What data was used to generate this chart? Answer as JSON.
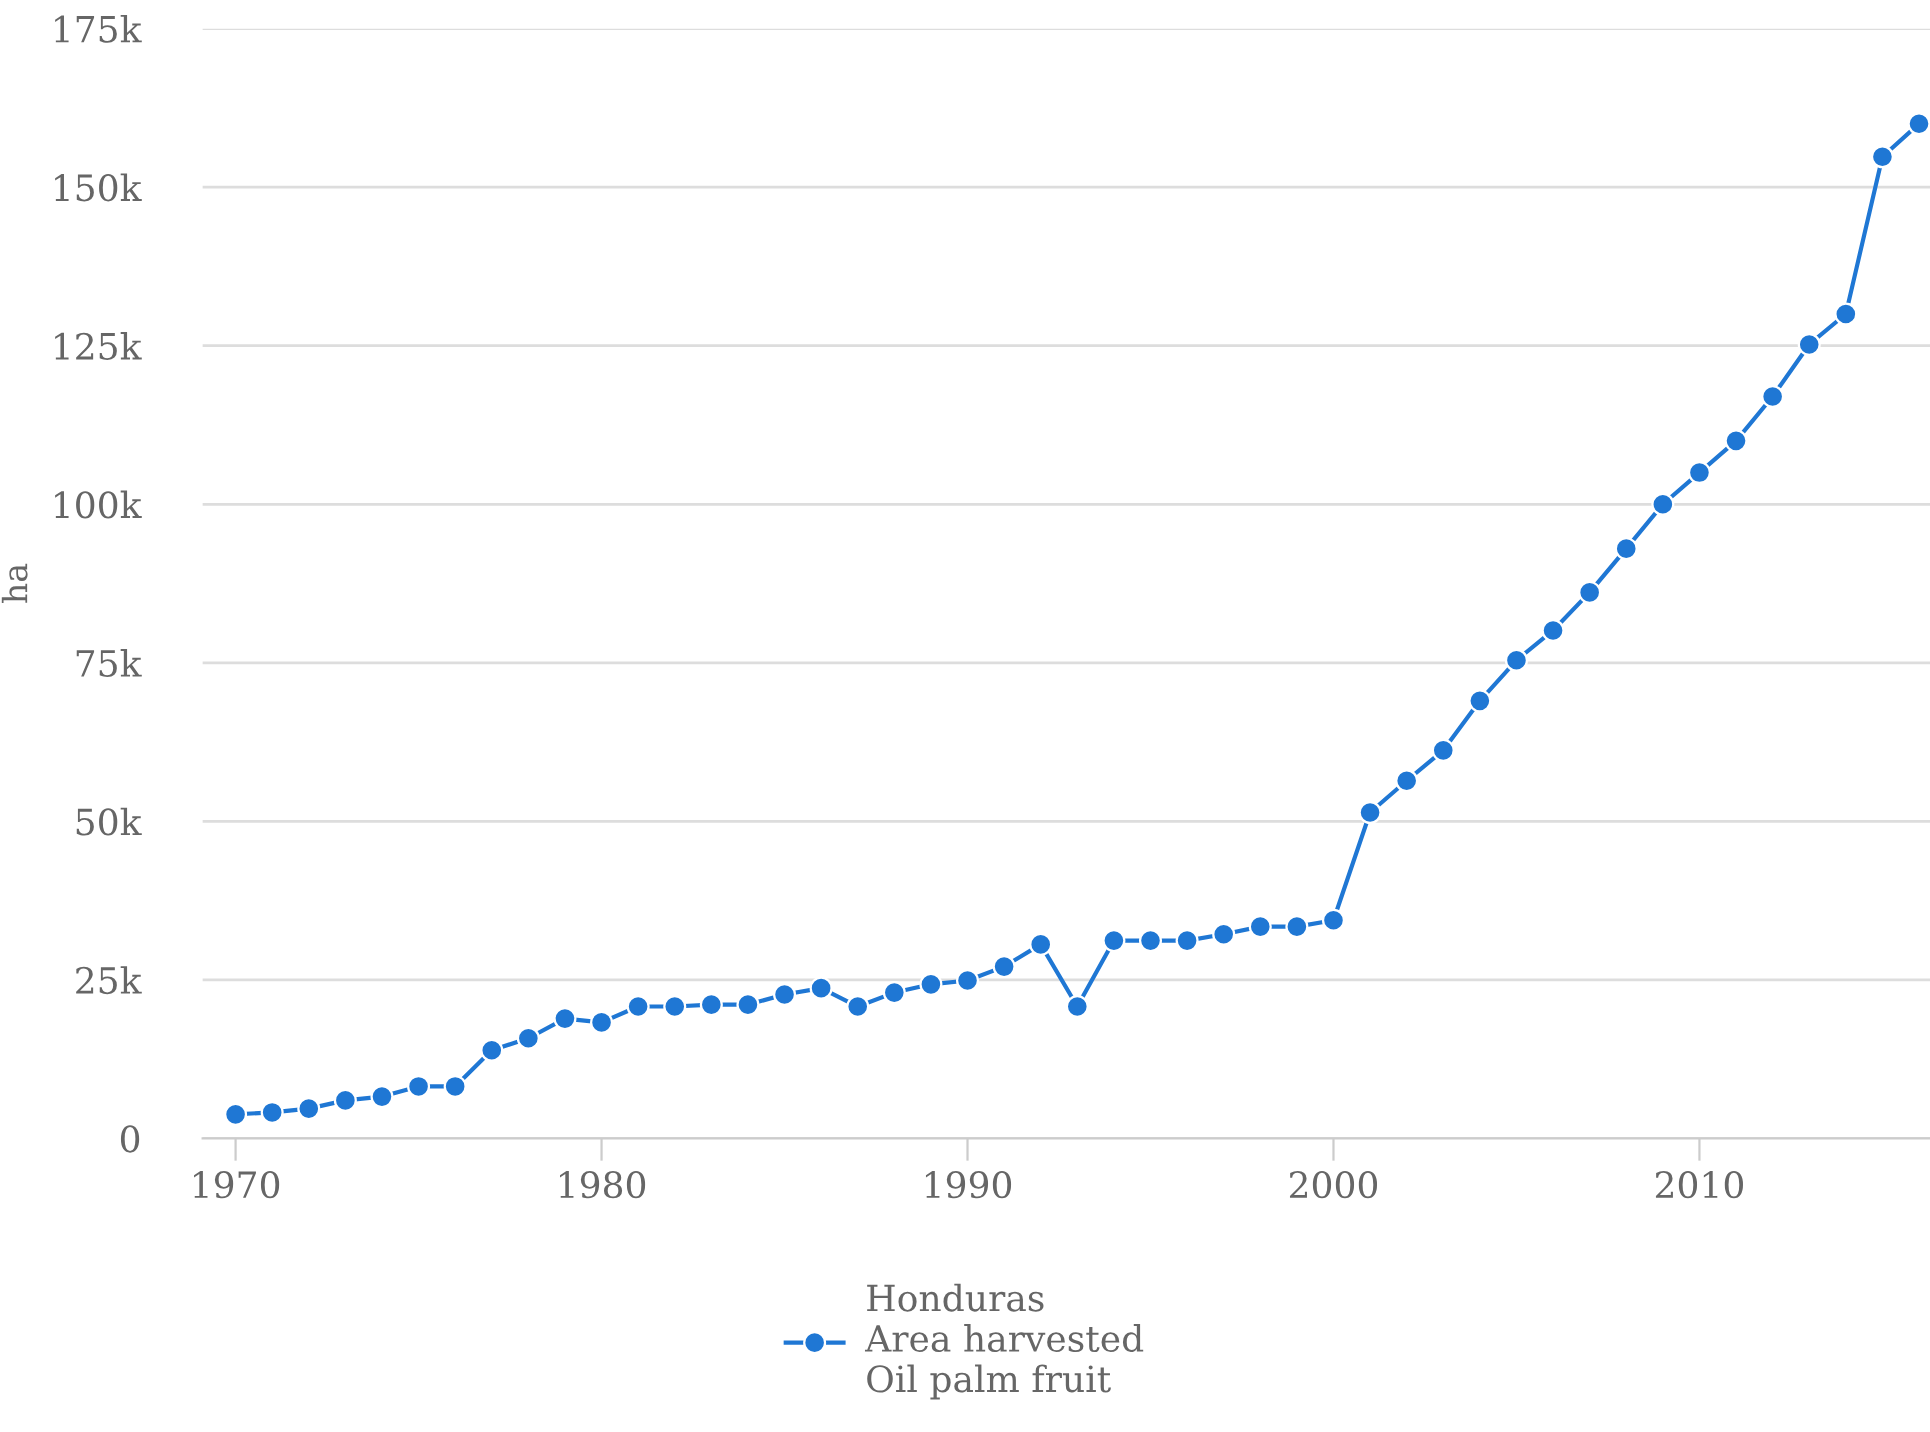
{
  "chart_data": {
    "type": "line",
    "ylabel": "ha",
    "x": [
      1970,
      1971,
      1972,
      1973,
      1974,
      1975,
      1976,
      1977,
      1978,
      1979,
      1980,
      1981,
      1982,
      1983,
      1984,
      1985,
      1986,
      1987,
      1988,
      1989,
      1990,
      1991,
      1992,
      1993,
      1994,
      1995,
      1996,
      1997,
      1998,
      1999,
      2000,
      2001,
      2002,
      2003,
      2004,
      2005,
      2006,
      2007,
      2008,
      2009,
      2010,
      2011,
      2012,
      2013,
      2014,
      2015,
      2016
    ],
    "series": [
      {
        "name": "Honduras\nArea harvested\nOil palm fruit",
        "color": "#1f77d4",
        "values": [
          3800,
          4100,
          4700,
          6000,
          6600,
          8200,
          8200,
          13900,
          15800,
          18900,
          18300,
          20800,
          20800,
          21100,
          21100,
          22700,
          23700,
          20800,
          23000,
          24300,
          24900,
          27100,
          30600,
          20800,
          31200,
          31200,
          31200,
          32200,
          33400,
          33400,
          34400,
          51400,
          56400,
          61200,
          69000,
          75400,
          80100,
          86100,
          93000,
          100000,
          105000,
          110000,
          117000,
          125200,
          130000,
          154800,
          160000
        ]
      }
    ],
    "xlim": [
      1969.1,
      2016.3
    ],
    "xticks": [
      1970,
      1980,
      1990,
      2000,
      2010
    ],
    "ylim": [
      0,
      175000
    ],
    "yticks": [
      {
        "value": 0,
        "label": "0"
      },
      {
        "value": 25000,
        "label": "25k"
      },
      {
        "value": 50000,
        "label": "50k"
      },
      {
        "value": 75000,
        "label": "75k"
      },
      {
        "value": 100000,
        "label": "100k"
      },
      {
        "value": 125000,
        "label": "125k"
      },
      {
        "value": 150000,
        "label": "150k"
      },
      {
        "value": 175000,
        "label": "175k"
      }
    ],
    "grid": "y",
    "legend": "bottom",
    "marker": "circle",
    "line_style": "solid"
  }
}
